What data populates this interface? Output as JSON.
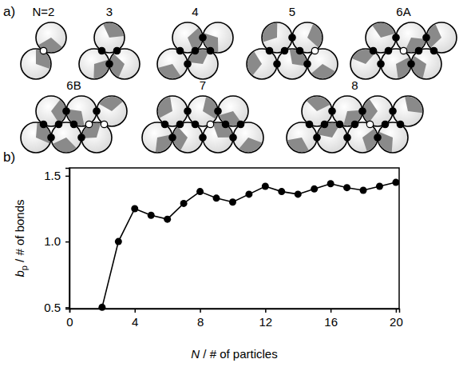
{
  "panel_a": {
    "panel_label": "a)",
    "clusters": [
      {
        "label": "N=2"
      },
      {
        "label": "3"
      },
      {
        "label": "4"
      },
      {
        "label": "5"
      },
      {
        "label": "6A"
      },
      {
        "label": "6B"
      },
      {
        "label": "7"
      },
      {
        "label": "8"
      }
    ]
  },
  "chart_data": {
    "type": "line",
    "panel_label": "b)",
    "x_label": "N / # of particles",
    "y_label": "bp / # of bonds",
    "x": [
      2,
      3,
      4,
      5,
      6,
      7,
      8,
      9,
      10,
      11,
      12,
      13,
      14,
      15,
      16,
      17,
      18,
      19,
      20
    ],
    "values": [
      0.5,
      1.0,
      1.25,
      1.2,
      1.17,
      1.29,
      1.38,
      1.33,
      1.3,
      1.36,
      1.42,
      1.38,
      1.36,
      1.4,
      1.44,
      1.41,
      1.39,
      1.42,
      1.45
    ],
    "color": "#000000",
    "marker": "circle",
    "line_style": "solid",
    "xlim": [
      0,
      20.2
    ],
    "xticks": [
      0,
      4,
      8,
      12,
      16,
      20
    ],
    "ylim": [
      0.49,
      1.56
    ],
    "yticks": [
      0.5,
      {
        "value": 1,
        "label": "1.0"
      },
      {
        "value": 1.5,
        "label": "1.5"
      }
    ],
    "grid": false
  }
}
